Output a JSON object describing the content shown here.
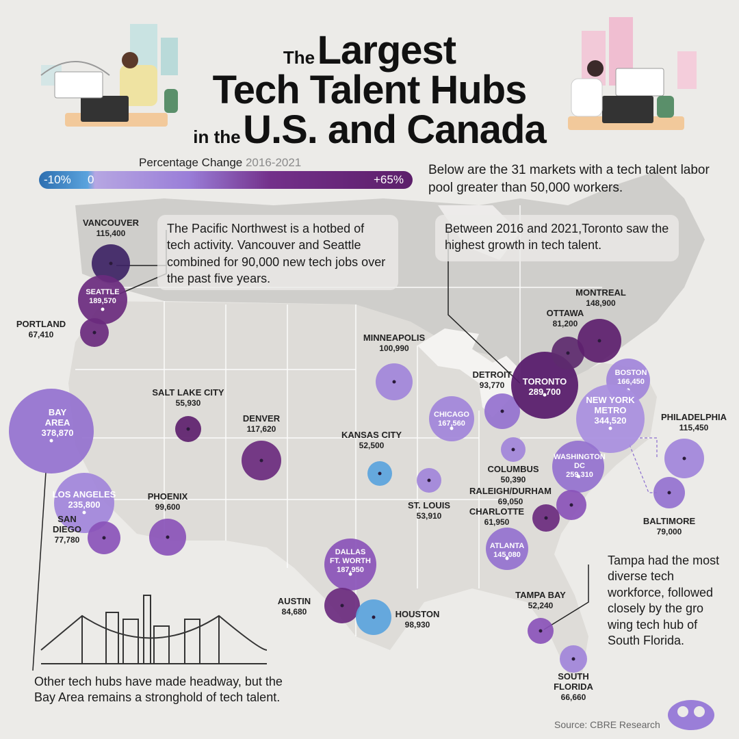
{
  "title": {
    "line1_small": "The",
    "line1_big": "Largest",
    "line2": "Tech Talent Hubs",
    "line3_small": "in the",
    "line3_big": "U.S. and Canada"
  },
  "legend": {
    "label": "Percentage Change",
    "years": "2016-2021",
    "min_label": "-10%",
    "zero_label": "0",
    "max_label": "+65%",
    "colors": {
      "negative": "#5aa3dd",
      "low": "#9a7ed8",
      "mid": "#73308a",
      "high": "#4a1d5c"
    }
  },
  "intro": "Below are the 31 markets with a tech talent labor pool greater than 50,000 workers.",
  "callouts": {
    "pacific_nw": "The Pacific Northwest is a hotbed of tech activity. Vancouver and Seattle combined for 90,000 new tech jobs over the past five years.",
    "toronto": "Between 2016 and 2021,Toronto saw the highest growth in tech talent.",
    "tampa": "Tampa had the most diverse tech workforce, followed closely by the gro wing tech hub of South Florida.",
    "bay_area": "Other tech hubs have made headway, but the Bay Area remains a stronghold of tech talent."
  },
  "source": "Source: CBRE Research",
  "markets": [
    {
      "name": "VANCOUVER",
      "value": "115,400",
      "color": "#3e2465"
    },
    {
      "name": "SEATTLE",
      "value": "189,570",
      "color": "#6a2a7e"
    },
    {
      "name": "PORTLAND",
      "value": "67,410",
      "color": "#6a2a7e"
    },
    {
      "name": "BAY AREA",
      "value": "378,870",
      "color": "#9471cf"
    },
    {
      "name": "LOS ANGELES",
      "value": "235,800",
      "color": "#a184da"
    },
    {
      "name": "SAN DIEGO",
      "value": "77,780",
      "color": "#8a52b8"
    },
    {
      "name": "SALT LAKE CITY",
      "value": "55,930",
      "color": "#5d1f6e"
    },
    {
      "name": "DENVER",
      "value": "117,620",
      "color": "#6a2a7e"
    },
    {
      "name": "PHOENIX",
      "value": "99,600",
      "color": "#8a52b8"
    },
    {
      "name": "MINNEAPOLIS",
      "value": "100,990",
      "color": "#a184da"
    },
    {
      "name": "KANSAS CITY",
      "value": "52,500",
      "color": "#5aa3dd"
    },
    {
      "name": "ST. LOUIS",
      "value": "53,910",
      "color": "#a184da"
    },
    {
      "name": "DALLAS FT. WORTH",
      "value": "187,950",
      "color": "#8a52b8"
    },
    {
      "name": "AUSTIN",
      "value": "84,680",
      "color": "#6a2a7e"
    },
    {
      "name": "HOUSTON",
      "value": "98,930",
      "color": "#5aa3dd"
    },
    {
      "name": "CHICAGO",
      "value": "167,560",
      "color": "#a184da"
    },
    {
      "name": "DETROIT",
      "value": "93,770",
      "color": "#9471cf"
    },
    {
      "name": "COLUMBUS",
      "value": "50,390",
      "color": "#a184da"
    },
    {
      "name": "TORONTO",
      "value": "289,700",
      "color": "#56196a"
    },
    {
      "name": "OTTAWA",
      "value": "81,200",
      "color": "#5d2a6e"
    },
    {
      "name": "MONTREAL",
      "value": "148,900",
      "color": "#5d1f6e"
    },
    {
      "name": "BOSTON",
      "value": "166,450",
      "color": "#a184da"
    },
    {
      "name": "NEW YORK METRO",
      "value": "344,520",
      "color": "#a88ee0"
    },
    {
      "name": "PHILADELPHIA",
      "value": "115,450",
      "color": "#a184da"
    },
    {
      "name": "WASHINGTON DC",
      "value": "259,310",
      "color": "#9471cf"
    },
    {
      "name": "BALTIMORE",
      "value": "79,000",
      "color": "#9471cf"
    },
    {
      "name": "RALEIGH/DURHAM",
      "value": "69,050",
      "color": "#8a52b8"
    },
    {
      "name": "CHARLOTTE",
      "value": "61,950",
      "color": "#6a2a7e"
    },
    {
      "name": "ATLANTA",
      "value": "145,080",
      "color": "#9471cf"
    },
    {
      "name": "TAMPA BAY",
      "value": "52,240",
      "color": "#8a52b8"
    },
    {
      "name": "SOUTH FLORIDA",
      "value": "66,660",
      "color": "#a184da"
    }
  ]
}
